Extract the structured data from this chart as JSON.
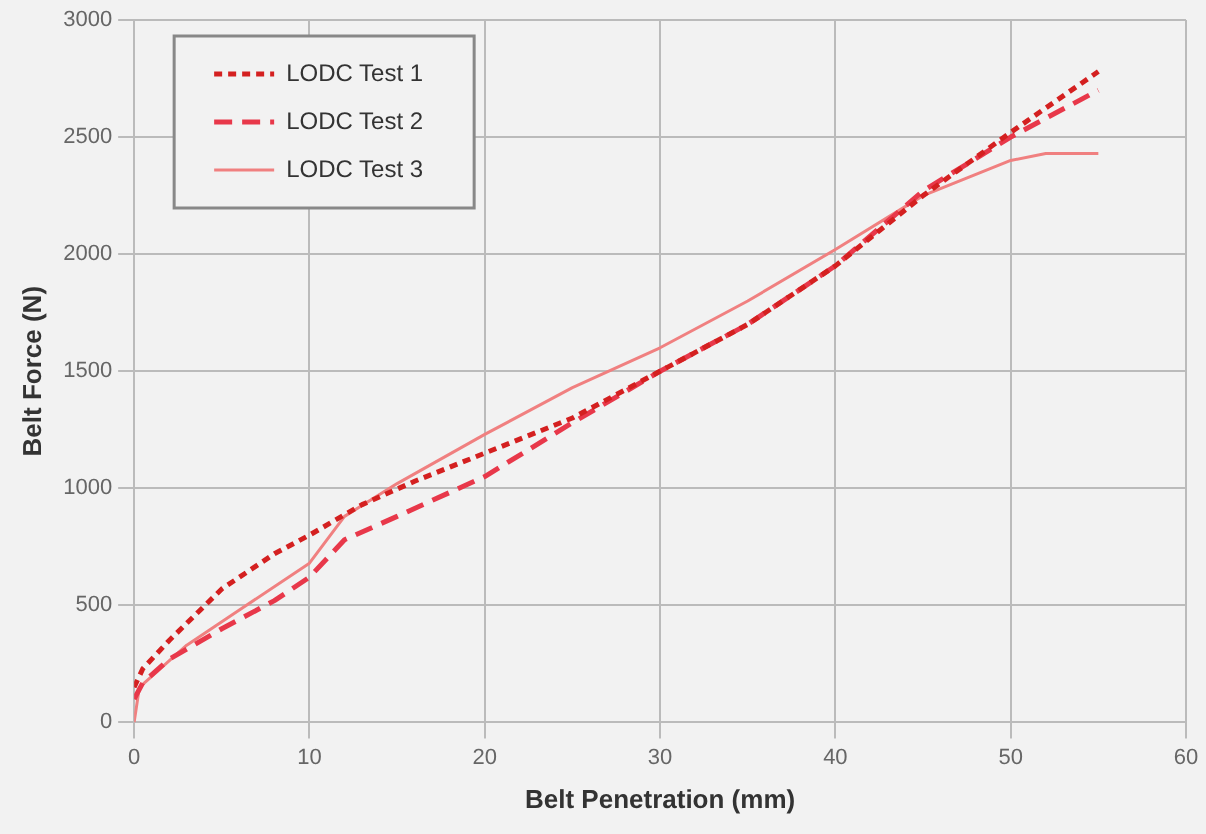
{
  "chart_data": {
    "type": "line",
    "xlabel": "Belt Penetration (mm)",
    "ylabel": "Belt Force (N)",
    "xlim": [
      0,
      60
    ],
    "xticks": [
      0,
      10,
      20,
      30,
      40,
      50,
      60
    ],
    "ylim": [
      0,
      3000
    ],
    "yticks": [
      0,
      500,
      1000,
      1500,
      2000,
      2500,
      3000
    ],
    "grid": true,
    "legend": "top left",
    "marker": "none",
    "series": [
      {
        "name": "LODC Test 1",
        "color": "#d42020",
        "line_style": "dotted",
        "x": [
          0,
          0.5,
          2,
          5,
          8,
          10,
          13,
          16,
          20,
          25,
          30,
          35,
          40,
          45,
          50,
          55
        ],
        "values": [
          150,
          230,
          350,
          570,
          720,
          800,
          930,
          1030,
          1150,
          1300,
          1500,
          1700,
          1950,
          2250,
          2520,
          2780
        ]
      },
      {
        "name": "LODC Test 2",
        "color": "#e8384a",
        "line_style": "dashed",
        "x": [
          0,
          0.5,
          2,
          5,
          8,
          10,
          12,
          15,
          20,
          25,
          30,
          35,
          40,
          45,
          50,
          55
        ],
        "values": [
          100,
          170,
          270,
          400,
          520,
          620,
          780,
          880,
          1050,
          1280,
          1500,
          1700,
          1950,
          2270,
          2500,
          2700
        ]
      },
      {
        "name": "LODC Test 3",
        "color": "#f08080",
        "line_style": "solid",
        "x": [
          0,
          0.3,
          3,
          6,
          10,
          12,
          15,
          20,
          25,
          30,
          35,
          40,
          45,
          50,
          52,
          55
        ],
        "values": [
          0,
          150,
          330,
          480,
          680,
          880,
          1020,
          1230,
          1430,
          1600,
          1800,
          2020,
          2250,
          2400,
          2430,
          2430
        ]
      }
    ]
  }
}
